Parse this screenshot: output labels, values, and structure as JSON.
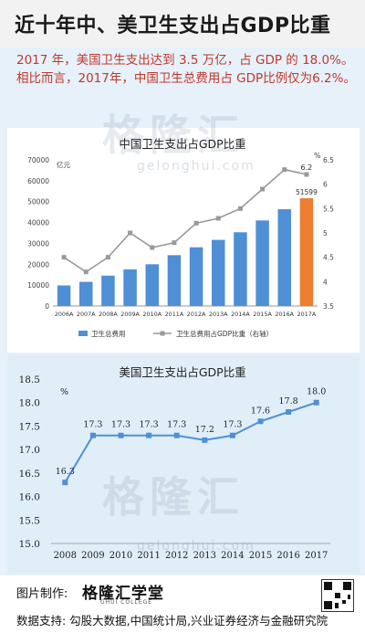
{
  "header": {
    "title": "近十年中、美卫生支出占GDP比重",
    "intro": "2017 年，美国卫生支出达到 3.5 万亿，占 GDP 的 18.0%。相比而言，2017年，中国卫生总费用占 GDP比例仅为6.2%。"
  },
  "watermark": {
    "brand": "格隆汇",
    "site": "gelonghui.com"
  },
  "chart_data": [
    {
      "type": "bar",
      "title": "中国卫生支出占GDP比重",
      "categories": [
        "2006A",
        "2007A",
        "2008A",
        "2009A",
        "2010A",
        "2011A",
        "2012A",
        "2013A",
        "2014A",
        "2015A",
        "2016A",
        "2017A"
      ],
      "series": [
        {
          "name": "卫生总费用",
          "axis": "left",
          "type": "bar",
          "values": [
            9843,
            11574,
            14535,
            17542,
            19980,
            24346,
            28119,
            31669,
            35312,
            40975,
            46345,
            51599
          ]
        },
        {
          "name": "卫生总费用占GDP比重（右轴）",
          "axis": "right",
          "type": "line",
          "values": [
            4.5,
            4.2,
            4.5,
            5.0,
            4.7,
            4.8,
            5.2,
            5.3,
            5.5,
            5.9,
            6.3,
            6.2
          ]
        }
      ],
      "ylabel_left": "亿元",
      "ylabel_right": "%",
      "ylim_left": [
        0,
        70000
      ],
      "ylim_right": [
        3.5,
        6.5
      ],
      "yticks_left": [
        "0",
        "10000",
        "20000",
        "30000",
        "40000",
        "50000",
        "60000",
        "70000"
      ],
      "yticks_right": [
        "3.5",
        "4",
        "4.5",
        "5",
        "5.5",
        "6",
        "6.5"
      ],
      "annotations": [
        "51599",
        "6.2"
      ],
      "highlight_color": "#ed7d31",
      "bar_color": "#4f8fd6",
      "line_color": "#999999",
      "legend": [
        "卫生总费用",
        "卫生总费用占GDP比重（右轴）"
      ],
      "legend_position": "bottom",
      "grid": false
    },
    {
      "type": "line",
      "title": "美国卫生支出占GDP比重",
      "x": [
        "2008",
        "2009",
        "2010",
        "2011",
        "2012",
        "2013",
        "2014",
        "2015",
        "2016",
        "2017"
      ],
      "values": [
        16.3,
        17.3,
        17.3,
        17.3,
        17.3,
        17.2,
        17.3,
        17.6,
        17.8,
        18.0
      ],
      "data_labels": [
        "16.3",
        "17.3",
        "17.3",
        "17.3",
        "17.3",
        "17.2",
        "17.3",
        "17.6",
        "17.8",
        "18.0"
      ],
      "ylabel": "%",
      "ylim": [
        15.0,
        18.5
      ],
      "yticks": [
        "15.0",
        "15.5",
        "16.0",
        "16.5",
        "17.0",
        "17.5",
        "18.0",
        "18.5"
      ],
      "line_color": "#4f8fd6",
      "grid": false
    }
  ],
  "footer": {
    "label_made": "图片制作:",
    "brand": "格隆汇学堂",
    "brand_sub": "GHUI COLLEGE",
    "label_source": "数据支持: 勾股大数据,中国统计局,兴业证券经济与金融研究院"
  }
}
